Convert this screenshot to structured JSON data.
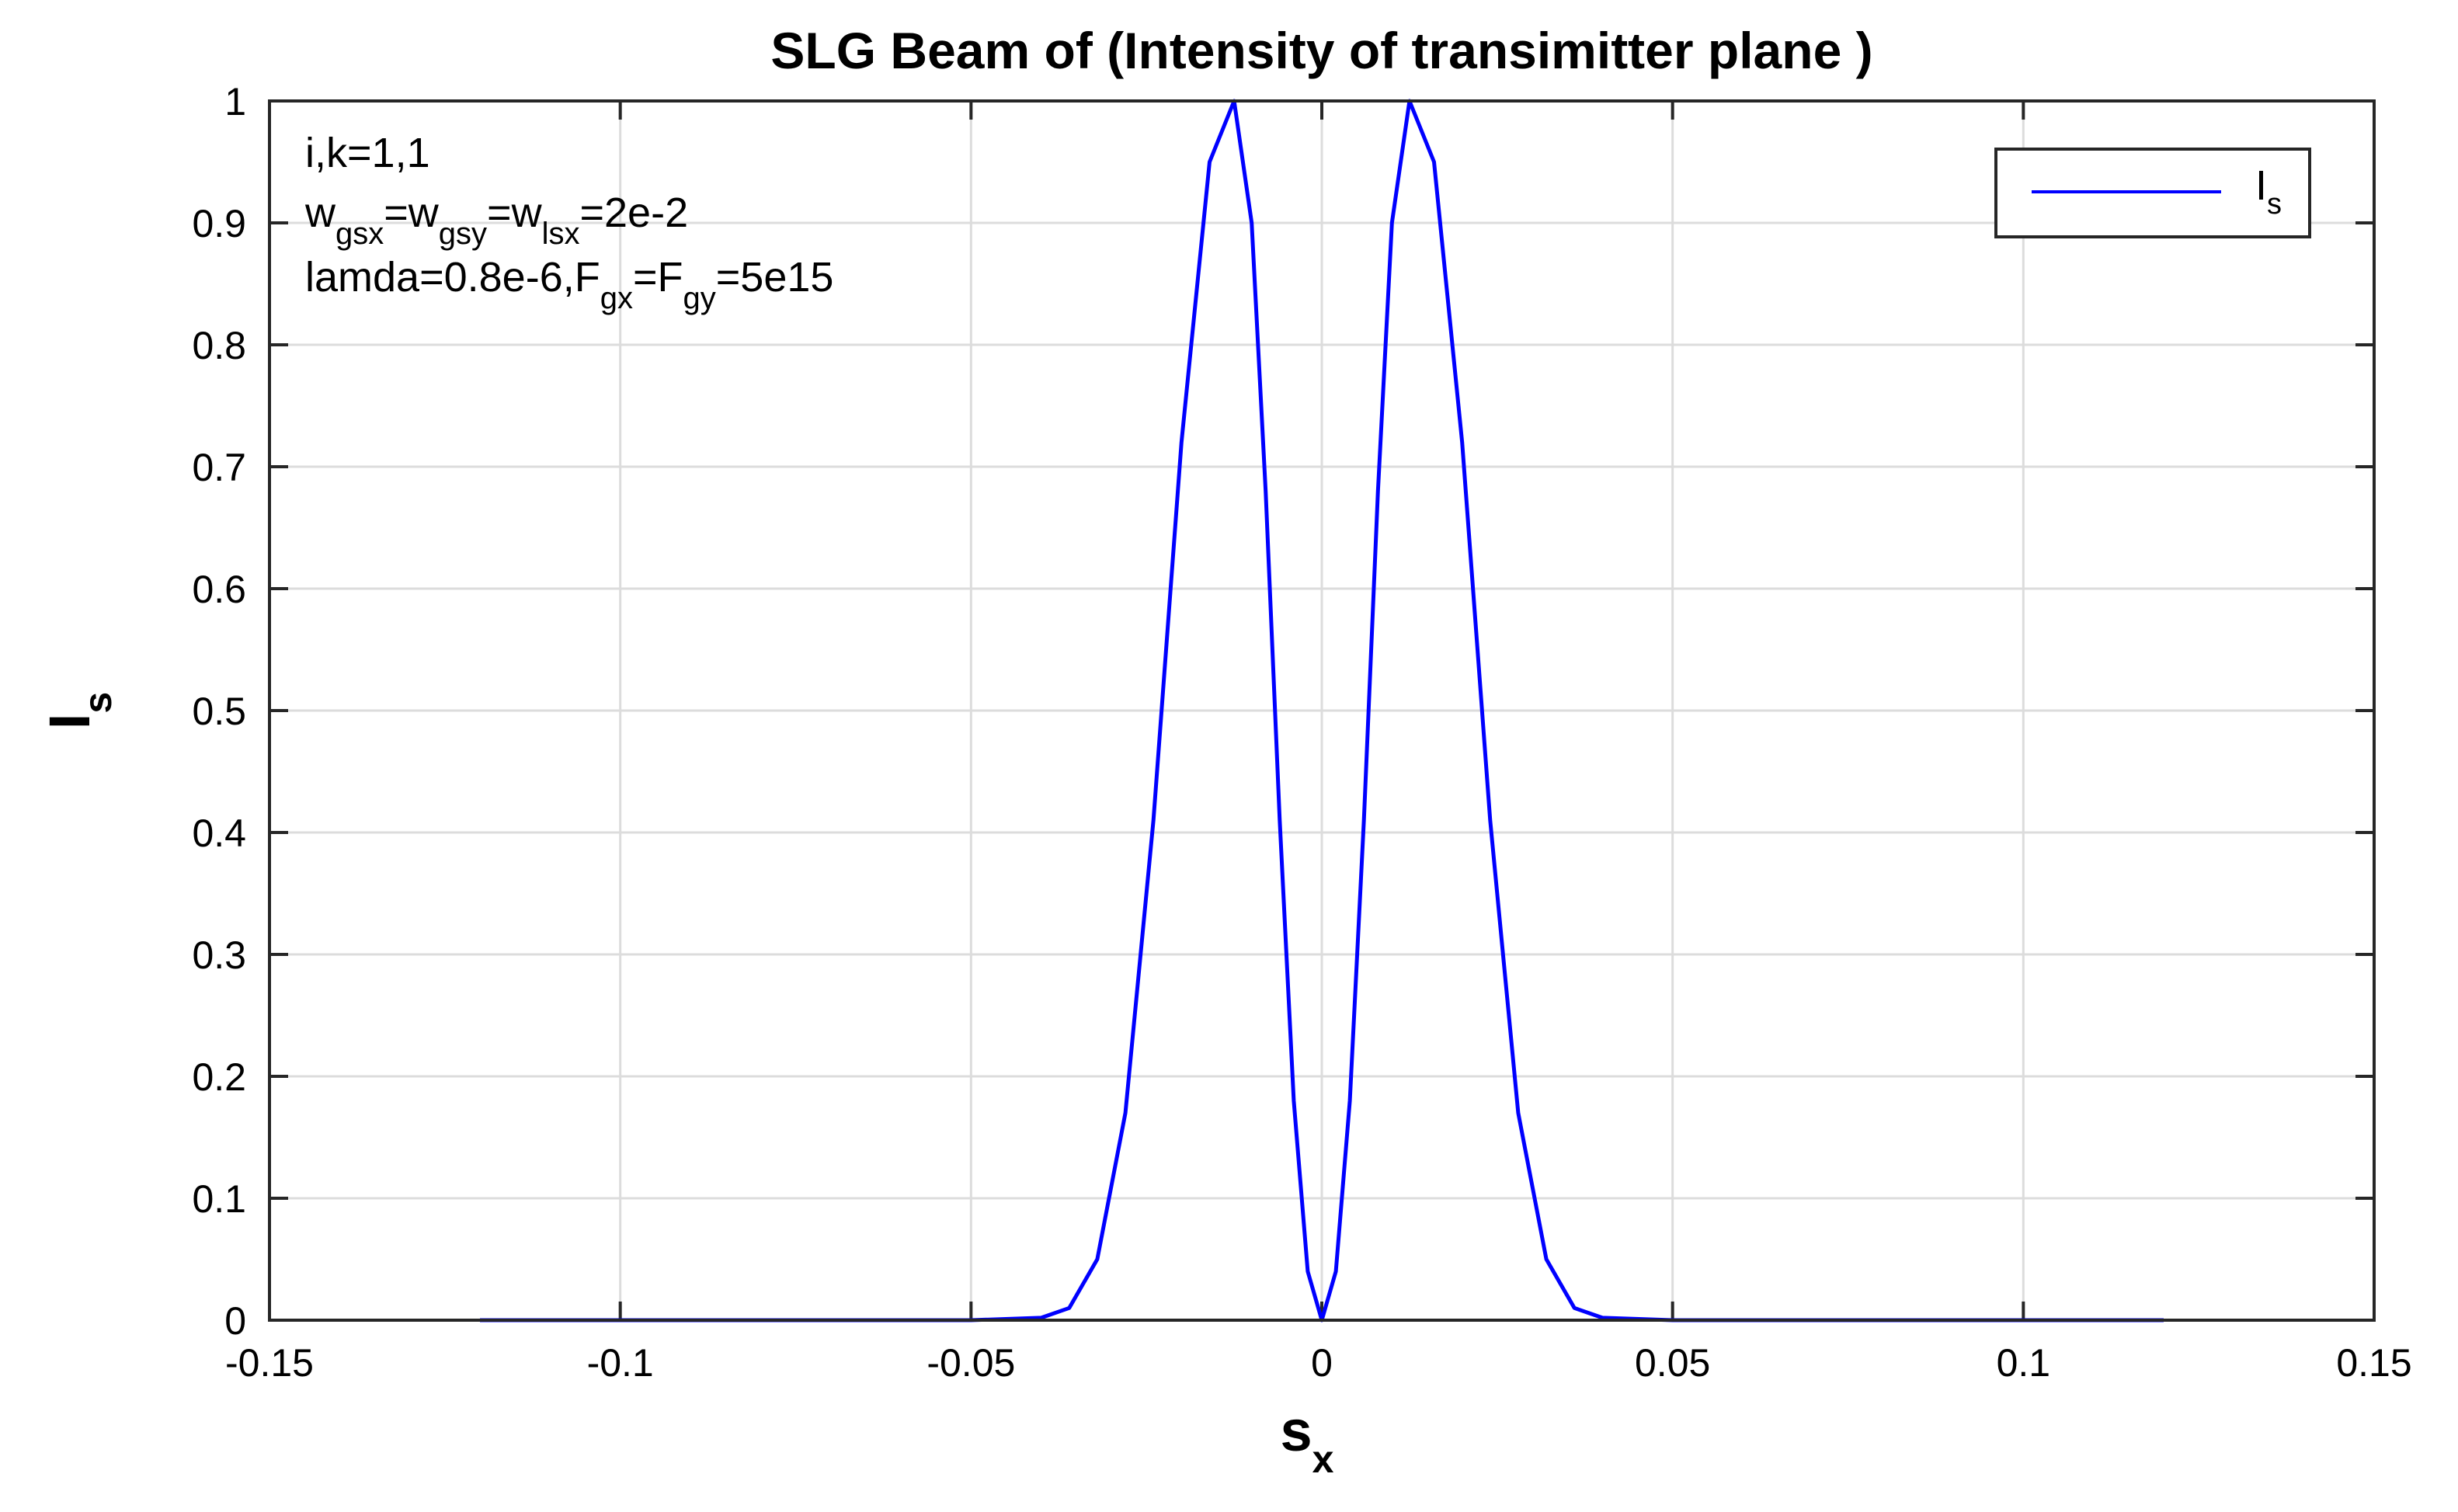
{
  "chart_data": {
    "type": "line",
    "title": "SLG Beam of (Intensity of transimitter plane )",
    "xlabel": {
      "main": "s",
      "sub": "x"
    },
    "ylabel": {
      "main": "I",
      "sub": "s"
    },
    "xlim": [
      -0.15,
      0.15
    ],
    "ylim": [
      0,
      1
    ],
    "x_ticks": [
      -0.15,
      -0.1,
      -0.05,
      0,
      0.05,
      0.1,
      0.15
    ],
    "x_tick_labels": [
      "-0.15",
      "-0.1",
      "-0.05",
      "0",
      "0.05",
      "0.1",
      "0.15"
    ],
    "y_ticks": [
      0,
      0.1,
      0.2,
      0.3,
      0.4,
      0.5,
      0.6,
      0.7,
      0.8,
      0.9,
      1
    ],
    "y_tick_labels": [
      "0",
      "0.1",
      "0.2",
      "0.3",
      "0.4",
      "0.5",
      "0.6",
      "0.7",
      "0.8",
      "0.9",
      "1"
    ],
    "grid": true,
    "legend_position": "top-right",
    "annotations": [
      [
        {
          "t": "i,k=1,1"
        }
      ],
      [
        {
          "t": "w"
        },
        {
          "t": "gsx",
          "sub": true
        },
        {
          "t": "=w"
        },
        {
          "t": "gsy",
          "sub": true
        },
        {
          "t": "=w"
        },
        {
          "t": "lsx",
          "sub": true
        },
        {
          "t": "=2e-2"
        }
      ],
      [
        {
          "t": "lamda=0.8e-6,F"
        },
        {
          "t": "gx",
          "sub": true
        },
        {
          "t": "=F"
        },
        {
          "t": "gy",
          "sub": true
        },
        {
          "t": "=5e15"
        }
      ]
    ],
    "series": [
      {
        "name": "I",
        "name_sub": "s",
        "color": "#0000ff",
        "x": [
          -0.12,
          -0.05,
          -0.04,
          -0.036,
          -0.032,
          -0.028,
          -0.024,
          -0.02,
          -0.016,
          -0.0125,
          -0.01,
          -0.008,
          -0.006,
          -0.004,
          -0.002,
          0,
          0.002,
          0.004,
          0.006,
          0.008,
          0.01,
          0.0125,
          0.016,
          0.02,
          0.024,
          0.028,
          0.032,
          0.036,
          0.04,
          0.05,
          0.12
        ],
        "y": [
          0,
          0,
          0.002,
          0.01,
          0.05,
          0.17,
          0.41,
          0.72,
          0.95,
          1.0,
          0.9,
          0.68,
          0.41,
          0.18,
          0.04,
          0,
          0.04,
          0.18,
          0.41,
          0.68,
          0.9,
          1.0,
          0.95,
          0.72,
          0.41,
          0.17,
          0.05,
          0.01,
          0.002,
          0,
          0
        ]
      }
    ]
  }
}
